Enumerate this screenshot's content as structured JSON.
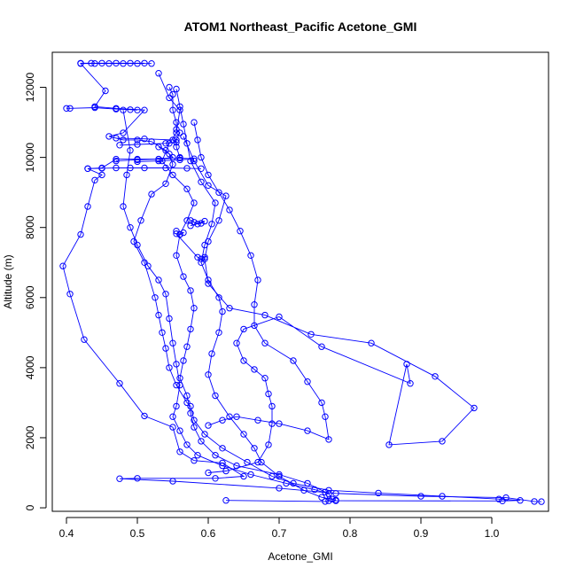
{
  "chart_data": {
    "type": "line",
    "title": "ATOM1 Northeast_Pacific Acetone_GMI",
    "xlabel": "Acetone_GMI",
    "ylabel": "Altitude (m)",
    "xlim": [
      0.38,
      1.08
    ],
    "ylim": [
      -100,
      13000
    ],
    "x_ticks": [
      0.4,
      0.5,
      0.6,
      0.7,
      0.8,
      0.9,
      1.0
    ],
    "x_tick_labels": [
      "0.4",
      "0.5",
      "0.6",
      "0.7",
      "0.8",
      "0.9",
      "1.0"
    ],
    "y_ticks": [
      0,
      2000,
      4000,
      6000,
      8000,
      10000,
      12000
    ],
    "y_tick_labels": [
      "0",
      "2000",
      "4000",
      "6000",
      "8000",
      "10000",
      "12000"
    ],
    "grid": false,
    "legend": "none",
    "marker": "open-circle",
    "color": "#0000ff",
    "series": [
      {
        "points": [
          [
            0.52,
            12680
          ],
          [
            0.5,
            12680
          ],
          [
            0.48,
            12680
          ],
          [
            0.46,
            12680
          ],
          [
            0.44,
            12680
          ],
          [
            0.42,
            12680
          ],
          [
            0.455,
            11900
          ],
          [
            0.44,
            11450
          ],
          [
            0.47,
            11400
          ],
          [
            0.51,
            11350
          ],
          [
            0.48,
            10700
          ],
          [
            0.46,
            10600
          ],
          [
            0.48,
            10500
          ],
          [
            0.5,
            10500
          ],
          [
            0.52,
            10450
          ],
          [
            0.54,
            10200
          ],
          [
            0.55,
            10000
          ],
          [
            0.53,
            9950
          ],
          [
            0.5,
            9950
          ],
          [
            0.47,
            9950
          ],
          [
            0.45,
            9700
          ],
          [
            0.43,
            9680
          ],
          [
            0.45,
            9500
          ],
          [
            0.44,
            9350
          ],
          [
            0.43,
            8600
          ],
          [
            0.42,
            7800
          ],
          [
            0.395,
            6900
          ],
          [
            0.405,
            6100
          ],
          [
            0.425,
            4800
          ],
          [
            0.475,
            3550
          ],
          [
            0.51,
            2620
          ],
          [
            0.55,
            2300
          ],
          [
            0.56,
            1600
          ],
          [
            0.58,
            1350
          ],
          [
            0.62,
            1280
          ],
          [
            0.65,
            900
          ],
          [
            0.61,
            840
          ],
          [
            0.5,
            840
          ],
          [
            0.475,
            830
          ],
          [
            0.55,
            760
          ],
          [
            0.7,
            560
          ],
          [
            0.78,
            410
          ],
          [
            0.9,
            330
          ],
          [
            1.02,
            290
          ],
          [
            1.06,
            180
          ],
          [
            1.07,
            175
          ]
        ]
      },
      {
        "points": [
          [
            0.53,
            12400
          ],
          [
            0.545,
            11700
          ],
          [
            0.56,
            11350
          ],
          [
            0.555,
            10700
          ],
          [
            0.545,
            10400
          ],
          [
            0.535,
            9900
          ],
          [
            0.55,
            9500
          ],
          [
            0.57,
            9100
          ],
          [
            0.58,
            8700
          ],
          [
            0.57,
            8200
          ],
          [
            0.56,
            7800
          ],
          [
            0.555,
            7200
          ],
          [
            0.565,
            6600
          ],
          [
            0.575,
            6200
          ],
          [
            0.58,
            5700
          ],
          [
            0.575,
            5100
          ],
          [
            0.57,
            4600
          ],
          [
            0.565,
            4200
          ],
          [
            0.56,
            3700
          ],
          [
            0.57,
            3200
          ],
          [
            0.575,
            2700
          ],
          [
            0.58,
            2300
          ],
          [
            0.59,
            1900
          ],
          [
            0.61,
            1500
          ],
          [
            0.64,
            1200
          ],
          [
            0.7,
            950
          ],
          [
            0.74,
            700
          ],
          [
            0.765,
            450
          ],
          [
            0.77,
            200
          ]
        ]
      },
      {
        "points": [
          [
            0.555,
            11950
          ],
          [
            0.56,
            11450
          ],
          [
            0.565,
            10950
          ],
          [
            0.57,
            10400
          ],
          [
            0.575,
            9900
          ],
          [
            0.59,
            9300
          ],
          [
            0.61,
            8700
          ],
          [
            0.605,
            8100
          ],
          [
            0.595,
            7500
          ],
          [
            0.59,
            7000
          ],
          [
            0.6,
            6500
          ],
          [
            0.615,
            6000
          ],
          [
            0.62,
            5600
          ],
          [
            0.615,
            5000
          ],
          [
            0.605,
            4400
          ],
          [
            0.6,
            3800
          ],
          [
            0.61,
            3200
          ],
          [
            0.63,
            2600
          ],
          [
            0.65,
            2100
          ],
          [
            0.665,
            1700
          ],
          [
            0.675,
            1300
          ],
          [
            0.7,
            900
          ],
          [
            0.735,
            500
          ],
          [
            0.76,
            300
          ],
          [
            0.78,
            220
          ]
        ]
      },
      {
        "points": [
          [
            0.565,
            10600
          ],
          [
            0.58,
            9900
          ],
          [
            0.6,
            9200
          ],
          [
            0.625,
            8900
          ],
          [
            0.615,
            8200
          ],
          [
            0.6,
            7600
          ],
          [
            0.595,
            7100
          ],
          [
            0.6,
            6400
          ],
          [
            0.63,
            5700
          ],
          [
            0.68,
            5500
          ],
          [
            0.745,
            4950
          ],
          [
            0.83,
            4700
          ],
          [
            0.92,
            3750
          ],
          [
            0.975,
            2850
          ],
          [
            0.93,
            1900
          ],
          [
            0.855,
            1800
          ],
          [
            0.88,
            4100
          ],
          [
            0.885,
            3550
          ],
          [
            0.76,
            4600
          ],
          [
            0.7,
            5450
          ],
          [
            0.65,
            5100
          ],
          [
            0.64,
            4700
          ],
          [
            0.65,
            4200
          ],
          [
            0.665,
            3950
          ],
          [
            0.68,
            3700
          ],
          [
            0.685,
            3250
          ],
          [
            0.69,
            2900
          ],
          [
            0.69,
            2400
          ],
          [
            0.685,
            1800
          ],
          [
            0.67,
            1300
          ],
          [
            0.625,
            1050
          ],
          [
            0.6,
            1000
          ]
        ]
      },
      {
        "points": [
          [
            0.53,
            10300
          ],
          [
            0.545,
            10100
          ],
          [
            0.55,
            9800
          ],
          [
            0.54,
            9250
          ],
          [
            0.52,
            8950
          ],
          [
            0.505,
            8200
          ],
          [
            0.495,
            7600
          ],
          [
            0.51,
            7000
          ],
          [
            0.525,
            6000
          ],
          [
            0.53,
            5500
          ],
          [
            0.535,
            5000
          ],
          [
            0.54,
            4550
          ],
          [
            0.545,
            4000
          ],
          [
            0.555,
            3500
          ],
          [
            0.57,
            3000
          ],
          [
            0.575,
            2900
          ],
          [
            0.58,
            2500
          ],
          [
            0.595,
            2100
          ],
          [
            0.62,
            1700
          ],
          [
            0.655,
            1300
          ],
          [
            0.69,
            900
          ],
          [
            0.72,
            700
          ],
          [
            0.77,
            500
          ],
          [
            0.84,
            420
          ],
          [
            0.93,
            330
          ],
          [
            1.01,
            250
          ],
          [
            1.04,
            210
          ],
          [
            1.015,
            195
          ],
          [
            0.78,
            200
          ],
          [
            0.765,
            180
          ],
          [
            0.625,
            210
          ]
        ]
      },
      {
        "points": [
          [
            0.48,
            11350
          ],
          [
            0.49,
            10200
          ],
          [
            0.485,
            9500
          ],
          [
            0.48,
            8600
          ],
          [
            0.49,
            8000
          ],
          [
            0.5,
            7500
          ],
          [
            0.515,
            6900
          ],
          [
            0.53,
            6500
          ],
          [
            0.54,
            6100
          ],
          [
            0.545,
            5400
          ],
          [
            0.55,
            4700
          ],
          [
            0.555,
            4100
          ],
          [
            0.56,
            3500
          ],
          [
            0.555,
            2900
          ],
          [
            0.55,
            2600
          ],
          [
            0.56,
            2200
          ],
          [
            0.57,
            1800
          ],
          [
            0.585,
            1500
          ],
          [
            0.62,
            1200
          ],
          [
            0.66,
            950
          ],
          [
            0.71,
            700
          ],
          [
            0.75,
            520
          ],
          [
            0.77,
            400
          ],
          [
            0.775,
            250
          ]
        ]
      },
      {
        "points": [
          [
            0.58,
            11000
          ],
          [
            0.585,
            10500
          ],
          [
            0.59,
            10000
          ],
          [
            0.6,
            9500
          ],
          [
            0.615,
            9000
          ],
          [
            0.63,
            8500
          ],
          [
            0.645,
            7900
          ],
          [
            0.66,
            7200
          ],
          [
            0.67,
            6500
          ],
          [
            0.665,
            5800
          ],
          [
            0.665,
            5200
          ],
          [
            0.68,
            4700
          ],
          [
            0.72,
            4200
          ],
          [
            0.74,
            3600
          ],
          [
            0.76,
            3000
          ],
          [
            0.765,
            2600
          ],
          [
            0.77,
            1950
          ],
          [
            0.74,
            2200
          ],
          [
            0.7,
            2400
          ],
          [
            0.67,
            2500
          ],
          [
            0.64,
            2600
          ],
          [
            0.62,
            2500
          ],
          [
            0.6,
            2350
          ]
        ]
      },
      {
        "points": [
          [
            0.47,
            10550
          ],
          [
            0.51,
            10530
          ],
          [
            0.55,
            10500
          ],
          [
            0.555,
            10430
          ],
          [
            0.54,
            10400
          ],
          [
            0.5,
            10370
          ],
          [
            0.475,
            10350
          ]
        ]
      },
      {
        "points": [
          [
            0.47,
            9900
          ],
          [
            0.5,
            9930
          ],
          [
            0.53,
            9950
          ],
          [
            0.56,
            9980
          ],
          [
            0.58,
            9960
          ],
          [
            0.56,
            9930
          ],
          [
            0.53,
            9900
          ],
          [
            0.5,
            9880
          ]
        ]
      },
      {
        "points": [
          [
            0.42,
            12690
          ],
          [
            0.435,
            12690
          ],
          [
            0.45,
            12690
          ],
          [
            0.47,
            12690
          ],
          [
            0.49,
            12690
          ],
          [
            0.51,
            12690
          ]
        ]
      },
      {
        "points": [
          [
            0.4,
            11400
          ],
          [
            0.405,
            11400
          ],
          [
            0.44,
            11420
          ],
          [
            0.47,
            11380
          ],
          [
            0.49,
            11360
          ],
          [
            0.5,
            11350
          ]
        ]
      },
      {
        "points": [
          [
            0.43,
            9680
          ],
          [
            0.45,
            9690
          ],
          [
            0.47,
            9700
          ],
          [
            0.49,
            9700
          ],
          [
            0.51,
            9700
          ],
          [
            0.54,
            9700
          ],
          [
            0.57,
            9690
          ],
          [
            0.59,
            9680
          ]
        ]
      },
      {
        "points": [
          [
            0.545,
            12000
          ],
          [
            0.55,
            11800
          ],
          [
            0.55,
            11350
          ],
          [
            0.555,
            11000
          ],
          [
            0.555,
            10800
          ],
          [
            0.56,
            10700
          ],
          [
            0.555,
            10500
          ],
          [
            0.555,
            10300
          ],
          [
            0.56,
            10000
          ]
        ]
      },
      {
        "points": [
          [
            0.575,
            8200
          ],
          [
            0.58,
            8150
          ],
          [
            0.585,
            8100
          ],
          [
            0.59,
            8120
          ],
          [
            0.595,
            8180
          ],
          [
            0.575,
            8050
          ]
        ]
      },
      {
        "points": [
          [
            0.555,
            7900
          ],
          [
            0.565,
            7850
          ],
          [
            0.56,
            7800
          ],
          [
            0.555,
            7820
          ],
          [
            0.585,
            7150
          ],
          [
            0.59,
            7100
          ],
          [
            0.595,
            7150
          ]
        ]
      }
    ]
  }
}
